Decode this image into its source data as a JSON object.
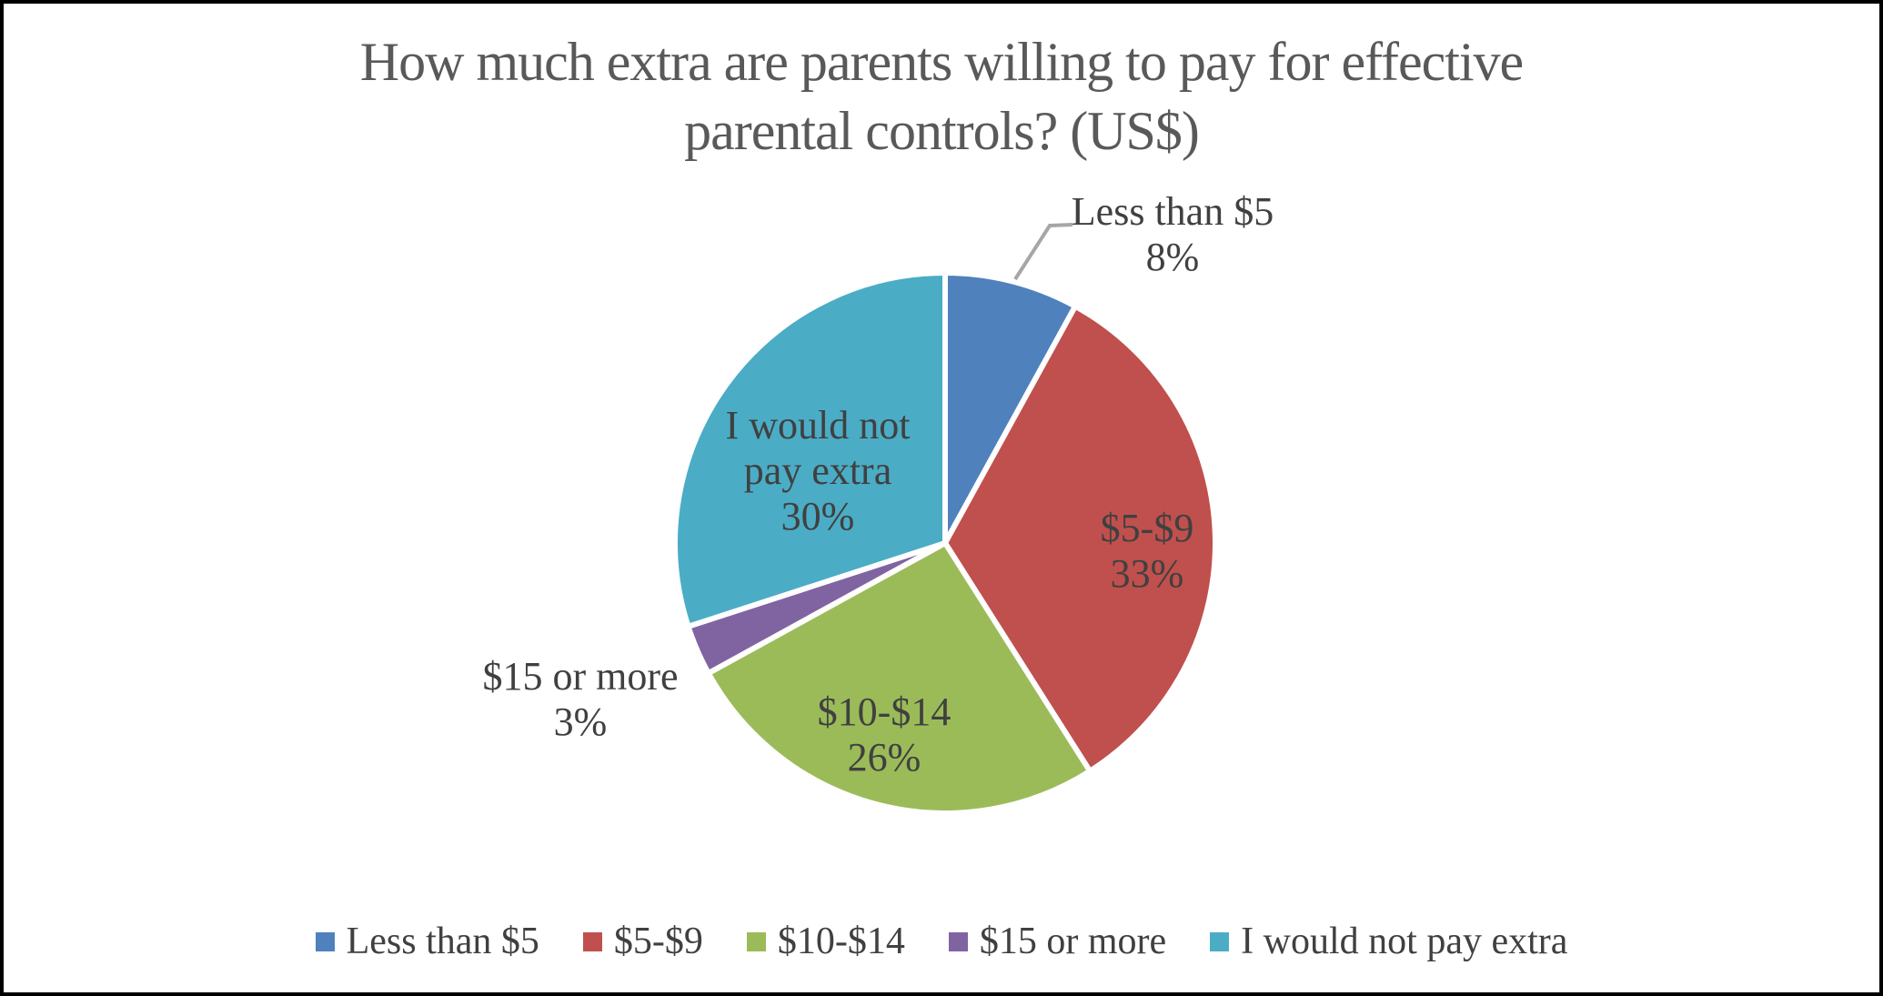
{
  "chart_data": {
    "type": "pie",
    "title": "How much extra are parents willing to pay for effective parental controls? (US$)",
    "title_lines": [
      "How much extra are parents willing to pay for effective",
      "parental controls? (US$)"
    ],
    "categories": [
      "Less than $5",
      "$5-$9",
      "$10-$14",
      "$15 or more",
      "I would not pay extra"
    ],
    "values": [
      8,
      33,
      26,
      3,
      30
    ],
    "unit": "%",
    "colors": [
      "#4F81BD",
      "#C0504D",
      "#9BBB59",
      "#8064A2",
      "#4BACC6"
    ],
    "start_angle_deg": 0,
    "direction": "clockwise",
    "legend_position": "bottom",
    "slice_labels": [
      {
        "name": "Less than $5",
        "pct": "8%",
        "placement": "outside-callout"
      },
      {
        "name": "$5-$9",
        "pct": "33%",
        "placement": "inside"
      },
      {
        "name": "$10-$14",
        "pct": "26%",
        "placement": "inside"
      },
      {
        "name": "$15 or more",
        "pct": "3%",
        "placement": "outside"
      },
      {
        "name": "I would not pay extra",
        "pct": "30%",
        "placement": "inside"
      }
    ]
  },
  "legend": {
    "items": [
      {
        "label": "Less than $5",
        "color": "#4F81BD"
      },
      {
        "label": "$5-$9",
        "color": "#C0504D"
      },
      {
        "label": "$10-$14",
        "color": "#9BBB59"
      },
      {
        "label": "$15 or more",
        "color": "#8064A2"
      },
      {
        "label": "I would not pay extra",
        "color": "#4BACC6"
      }
    ]
  },
  "style_colors": {
    "title_text": "#595959",
    "label_text": "#404040",
    "leader_line": "#A6A6A6",
    "slice_separator": "#FFFFFF",
    "frame_border": "#000000",
    "background": "#FFFFFF"
  }
}
